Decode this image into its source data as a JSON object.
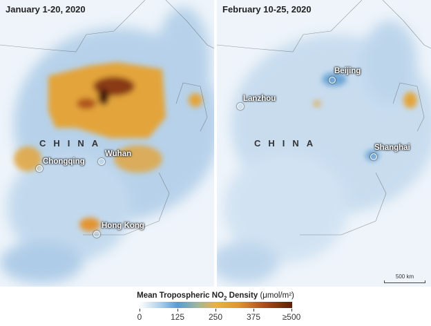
{
  "panels": [
    {
      "title": "January 1-20, 2020",
      "country": "CHINA",
      "cities": [
        "Chongqing",
        "Wuhan",
        "Hong Kong"
      ]
    },
    {
      "title": "February 10-25, 2020",
      "country": "CHINA",
      "cities": [
        "Beijing",
        "Lanzhou",
        "Shanghai"
      ]
    }
  ],
  "scale_bar": "500 km",
  "legend": {
    "title": "Mean Tropospheric NO",
    "subscript": "2",
    "title_rest": " Density",
    "unit": "(μmol/m²)",
    "ticks": [
      "0",
      "125",
      "250",
      "375",
      "≥500"
    ],
    "colors": [
      "#ffffff",
      "#5b9bd0",
      "#e8b340",
      "#5a200a"
    ]
  }
}
